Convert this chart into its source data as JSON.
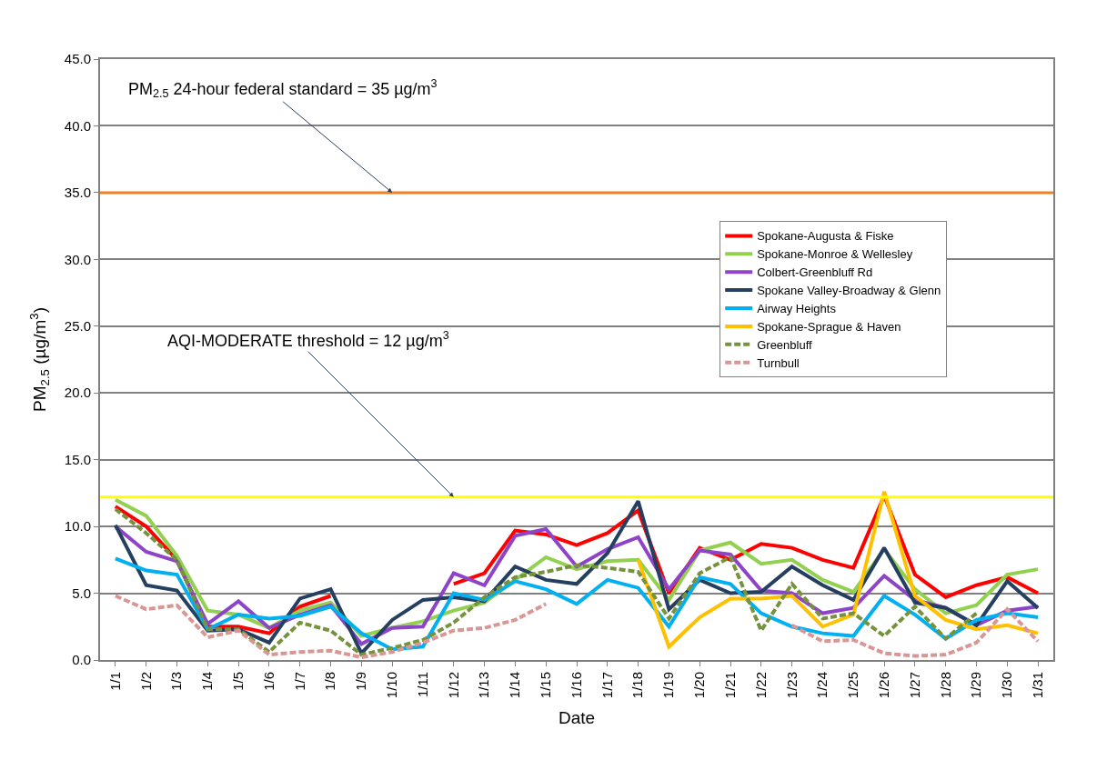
{
  "chart_data": {
    "type": "line",
    "xlabel": "Date",
    "ylabel": "PM$_{2.5}$ (µg/m$^{3}$)",
    "categories": [
      "1/1",
      "1/2",
      "1/3",
      "1/4",
      "1/5",
      "1/6",
      "1/7",
      "1/8",
      "1/9",
      "1/10",
      "1/11",
      "1/12",
      "1/13",
      "1/14",
      "1/15",
      "1/16",
      "1/17",
      "1/18",
      "1/19",
      "1/20",
      "1/21",
      "1/22",
      "1/23",
      "1/24",
      "1/25",
      "1/26",
      "1/27",
      "1/28",
      "1/29",
      "1/30",
      "1/31"
    ],
    "ylim": [
      0,
      45
    ],
    "yticks": [
      {
        "value": 0,
        "label": "0.0"
      },
      {
        "value": 5,
        "label": "5.0"
      },
      {
        "value": 10,
        "label": "10.0"
      },
      {
        "value": 15,
        "label": "15.0"
      },
      {
        "value": 20,
        "label": "20.0"
      },
      {
        "value": 25,
        "label": "25.0"
      },
      {
        "value": 30,
        "label": "30.0"
      },
      {
        "value": 35,
        "label": "35.0"
      },
      {
        "value": 40,
        "label": "40.0"
      },
      {
        "value": 45,
        "label": "45.0"
      }
    ],
    "grid": "y",
    "legend": "right",
    "marker": "none",
    "series": [
      {
        "name": "Spokane-Augusta & Fiske",
        "color": "#ff0000",
        "line_style": "solid",
        "values": [
          11.5,
          10.0,
          7.5,
          2.5,
          2.5,
          2.0,
          4.0,
          4.8,
          null,
          null,
          null,
          5.7,
          6.5,
          9.7,
          9.4,
          8.6,
          9.5,
          11.2,
          5.0,
          8.4,
          7.5,
          8.7,
          8.4,
          7.5,
          6.9,
          12.3,
          6.4,
          4.7,
          5.6,
          6.2,
          5.0
        ]
      },
      {
        "name": "Spokane-Monroe & Wellesley",
        "color": "#92d050",
        "line_style": "solid",
        "values": [
          12.0,
          10.8,
          7.8,
          3.7,
          3.4,
          2.4,
          3.7,
          4.3,
          1.8,
          2.4,
          2.9,
          3.7,
          4.3,
          6.0,
          7.7,
          6.8,
          7.4,
          7.5,
          4.5,
          8.2,
          8.8,
          7.2,
          7.5,
          6.0,
          5.1,
          8.3,
          5.3,
          3.5,
          4.1,
          6.4,
          6.8
        ]
      },
      {
        "name": "Colbert-Greenbluff Rd",
        "color": "#8e44c8",
        "line_style": "solid",
        "values": [
          10.0,
          8.1,
          7.4,
          2.7,
          4.4,
          2.4,
          3.4,
          4.1,
          1.2,
          2.4,
          2.5,
          6.5,
          5.6,
          9.3,
          9.8,
          7.0,
          8.3,
          9.2,
          5.3,
          8.2,
          7.9,
          5.2,
          5.0,
          3.5,
          3.9,
          6.3,
          4.5,
          3.9,
          2.6,
          3.7,
          4.0
        ]
      },
      {
        "name": "Spokane Valley-Broadway & Glenn",
        "color": "#243f60",
        "line_style": "solid",
        "values": [
          10.1,
          5.6,
          5.2,
          2.2,
          2.3,
          1.3,
          4.6,
          5.3,
          0.5,
          3.0,
          4.5,
          4.7,
          4.4,
          7.0,
          6.0,
          5.7,
          8.0,
          11.9,
          3.8,
          6.0,
          5.0,
          5.1,
          7.0,
          5.6,
          4.5,
          8.4,
          4.3,
          3.9,
          2.6,
          5.9,
          3.9
        ]
      },
      {
        "name": "Airway Heights",
        "color": "#00b0f0",
        "line_style": "solid",
        "values": [
          7.6,
          6.7,
          6.4,
          2.3,
          3.4,
          3.1,
          3.3,
          4.0,
          2.0,
          0.8,
          1.0,
          5.0,
          4.5,
          5.9,
          5.3,
          4.2,
          6.0,
          5.4,
          2.5,
          6.2,
          5.7,
          3.5,
          2.5,
          2.0,
          1.8,
          4.8,
          3.4,
          1.6,
          3.0,
          3.5,
          3.2
        ]
      },
      {
        "name": "Spokane-Sprague & Haven",
        "color": "#ffc000",
        "line_style": "solid",
        "values": [
          null,
          null,
          null,
          null,
          null,
          null,
          null,
          null,
          null,
          null,
          null,
          null,
          null,
          null,
          null,
          null,
          null,
          7.5,
          1.0,
          3.2,
          4.6,
          4.6,
          4.8,
          2.5,
          3.4,
          12.6,
          4.8,
          3.0,
          2.3,
          2.6,
          2.0
        ]
      },
      {
        "name": "Greenbluff",
        "color": "#76923c",
        "line_style": "dashed",
        "values": [
          11.3,
          9.5,
          7.5,
          2.3,
          2.3,
          0.6,
          2.8,
          2.2,
          0.4,
          0.9,
          1.5,
          2.8,
          4.7,
          6.2,
          6.6,
          7.1,
          6.9,
          6.6,
          3.1,
          6.5,
          7.7,
          2.2,
          5.7,
          3.1,
          3.5,
          1.8,
          4.0,
          1.6,
          3.5,
          null,
          null
        ]
      },
      {
        "name": "Turnbull",
        "color": "#d99694",
        "line_style": "dashed",
        "values": [
          4.8,
          3.8,
          4.1,
          1.7,
          2.2,
          0.4,
          0.6,
          0.7,
          0.2,
          0.6,
          1.3,
          2.2,
          2.4,
          3.0,
          4.2,
          null,
          null,
          null,
          null,
          null,
          null,
          null,
          2.6,
          1.4,
          1.5,
          0.5,
          0.3,
          0.4,
          1.3,
          3.8,
          1.4
        ]
      }
    ],
    "ref_lines": [
      {
        "axis": "y",
        "value": 35,
        "label": "PM$_{2.5}$ 24-hour federal standard = 35 µg/m$^{3}$",
        "color": "#f08020"
      },
      {
        "axis": "y",
        "value": 12.2,
        "label": "AQI-MODERATE threshold = 12 µg/m$^{3}$",
        "color": "#ffff00"
      }
    ]
  }
}
